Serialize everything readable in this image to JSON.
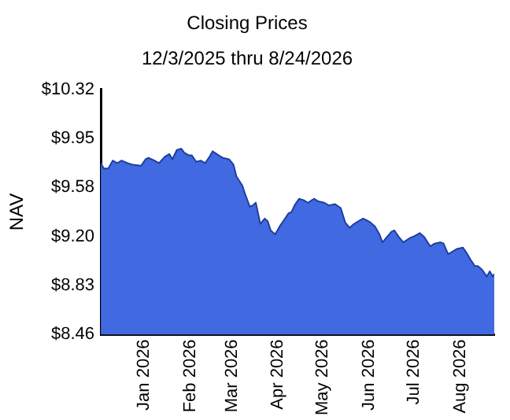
{
  "chart_data": {
    "type": "area",
    "title": "Closing Prices",
    "subtitle": "12/3/2025 thru 8/24/2026",
    "ylabel": "NAV",
    "x": [
      "2025-12-03",
      "2025-12-05",
      "2025-12-08",
      "2025-12-11",
      "2025-12-14",
      "2025-12-17",
      "2025-12-21",
      "2025-12-24",
      "2025-12-30",
      "2026-01-02",
      "2026-01-04",
      "2026-01-08",
      "2026-01-11",
      "2026-01-15",
      "2026-01-18",
      "2026-01-20",
      "2026-01-23",
      "2026-01-26",
      "2026-01-28",
      "2026-01-31",
      "2026-02-02",
      "2026-02-05",
      "2026-02-08",
      "2026-02-11",
      "2026-02-14",
      "2026-02-16",
      "2026-02-20",
      "2026-02-23",
      "2026-02-27",
      "2026-03-02",
      "2026-03-04",
      "2026-03-08",
      "2026-03-10",
      "2026-03-13",
      "2026-03-15",
      "2026-03-17",
      "2026-03-20",
      "2026-03-23",
      "2026-03-25",
      "2026-03-27",
      "2026-03-30",
      "2026-04-02",
      "2026-04-05",
      "2026-04-08",
      "2026-04-10",
      "2026-04-12",
      "2026-04-15",
      "2026-04-18",
      "2026-04-21",
      "2026-04-25",
      "2026-04-28",
      "2026-05-02",
      "2026-05-05",
      "2026-05-09",
      "2026-05-13",
      "2026-05-16",
      "2026-05-19",
      "2026-05-22",
      "2026-05-25",
      "2026-05-28",
      "2026-05-30",
      "2026-06-02",
      "2026-06-05",
      "2026-06-08",
      "2026-06-10",
      "2026-06-13",
      "2026-06-16",
      "2026-06-18",
      "2026-06-21",
      "2026-06-24",
      "2026-06-28",
      "2026-07-02",
      "2026-07-05",
      "2026-07-08",
      "2026-07-12",
      "2026-07-15",
      "2026-07-19",
      "2026-07-21",
      "2026-07-24",
      "2026-07-27",
      "2026-07-30",
      "2026-08-03",
      "2026-08-06",
      "2026-08-08",
      "2026-08-11",
      "2026-08-13",
      "2026-08-16",
      "2026-08-19",
      "2026-08-21",
      "2026-08-23",
      "2026-08-24"
    ],
    "series": [
      {
        "color": "#4169e1",
        "values": [
          9.76,
          9.72,
          9.72,
          9.78,
          9.76,
          9.78,
          9.76,
          9.75,
          9.74,
          9.79,
          9.8,
          9.78,
          9.76,
          9.81,
          9.83,
          9.79,
          9.86,
          9.87,
          9.84,
          9.82,
          9.82,
          9.77,
          9.78,
          9.76,
          9.81,
          9.85,
          9.82,
          9.8,
          9.79,
          9.75,
          9.66,
          9.59,
          9.52,
          9.43,
          9.44,
          9.46,
          9.3,
          9.34,
          9.32,
          9.25,
          9.22,
          9.28,
          9.33,
          9.38,
          9.39,
          9.44,
          9.49,
          9.48,
          9.46,
          9.49,
          9.47,
          9.46,
          9.44,
          9.45,
          9.42,
          9.31,
          9.27,
          9.3,
          9.32,
          9.34,
          9.33,
          9.31,
          9.28,
          9.22,
          9.16,
          9.2,
          9.24,
          9.25,
          9.2,
          9.16,
          9.19,
          9.21,
          9.23,
          9.2,
          9.13,
          9.15,
          9.16,
          9.15,
          9.07,
          9.09,
          9.11,
          9.12,
          9.07,
          9.03,
          8.98,
          8.98,
          8.95,
          8.9,
          8.94,
          8.9,
          8.92
        ]
      }
    ],
    "xlim": [
      "2025-12-03",
      "2026-08-24"
    ],
    "xticks": [
      {
        "value": "2026-01-01",
        "label": "Jan 2026"
      },
      {
        "value": "2026-02-01",
        "label": "Feb 2026"
      },
      {
        "value": "2026-03-01",
        "label": "Mar 2026"
      },
      {
        "value": "2026-04-01",
        "label": "Apr 2026"
      },
      {
        "value": "2026-05-01",
        "label": "May 2026"
      },
      {
        "value": "2026-06-01",
        "label": "Jun 2026"
      },
      {
        "value": "2026-07-01",
        "label": "Jul 2026"
      },
      {
        "value": "2026-08-01",
        "label": "Aug 2026"
      }
    ],
    "ylim": [
      8.46,
      10.32
    ],
    "yticks": [
      {
        "value": 8.46,
        "label": "$8.46"
      },
      {
        "value": 8.832,
        "label": "$8.83"
      },
      {
        "value": 9.204,
        "label": "$9.20"
      },
      {
        "value": 9.576,
        "label": "$9.58"
      },
      {
        "value": 9.948,
        "label": "$9.95"
      },
      {
        "value": 10.32,
        "label": "$10.32"
      }
    ],
    "grid": false,
    "legend": false
  }
}
